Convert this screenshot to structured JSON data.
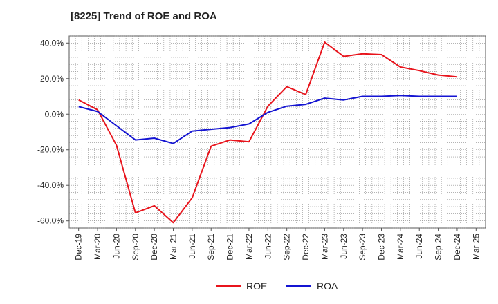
{
  "chart_data": {
    "type": "line",
    "title": "[8225]  Trend of ROE and ROA",
    "colors": {
      "ROE": "#e8141c",
      "ROA": "#1414d2"
    },
    "ylim": [
      -64,
      44
    ],
    "y_ticks": [
      40,
      20,
      0,
      -20,
      -40,
      -60
    ],
    "y_tick_labels": [
      "40.0%",
      "20.0%",
      "0.0%",
      "-20.0%",
      "-40.0%",
      "-60.0%"
    ],
    "x_ticks": [
      "Dec-19",
      "Mar-20",
      "Jun-20",
      "Sep-20",
      "Dec-20",
      "Mar-21",
      "Jun-21",
      "Sep-21",
      "Dec-21",
      "Mar-22",
      "Jun-22",
      "Sep-22",
      "Dec-22",
      "Mar-23",
      "Jun-23",
      "Sep-23",
      "Dec-23",
      "Mar-24",
      "Jun-24",
      "Sep-24",
      "Dec-24",
      "Mar-25"
    ],
    "grid": true,
    "legend_position": "bottom",
    "series": [
      {
        "name": "ROE",
        "values": [
          8.0,
          2.5,
          -17.5,
          -55.5,
          -51.5,
          -61.0,
          -47.0,
          -18.0,
          -14.5,
          -15.5,
          4.5,
          15.5,
          11.0,
          40.5,
          32.5,
          34.0,
          33.5,
          26.5,
          24.5,
          22.0,
          21.0
        ]
      },
      {
        "name": "ROA",
        "values": [
          4.2,
          1.5,
          -6.5,
          -14.5,
          -13.5,
          -16.5,
          -9.5,
          -8.5,
          -7.5,
          -5.5,
          1.0,
          4.5,
          5.5,
          9.0,
          8.0,
          10.0,
          10.0,
          10.5,
          10.0,
          10.0,
          10.0
        ]
      }
    ]
  }
}
